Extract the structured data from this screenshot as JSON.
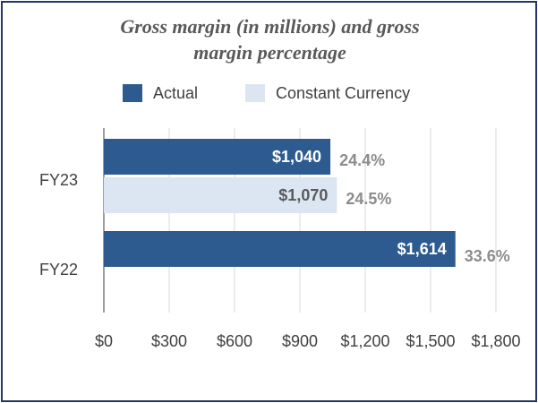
{
  "chart_data": {
    "type": "bar",
    "orientation": "horizontal",
    "title_lines": [
      "Gross margin (in millions) and gross",
      "margin percentage"
    ],
    "xlabel": "",
    "ylabel": "",
    "xlim": [
      0,
      1800
    ],
    "x_ticks": [
      0,
      300,
      600,
      900,
      1200,
      1500,
      1800
    ],
    "x_tick_labels": [
      "$0",
      "$300",
      "$600",
      "$900",
      "$1,200",
      "$1,500",
      "$1,800"
    ],
    "grid": "vertical",
    "legend_position": "top",
    "categories": [
      "FY23",
      "FY22"
    ],
    "series": [
      {
        "name": "Actual",
        "color": "#2e5b8f",
        "label_color": "#ffffff",
        "values": [
          1040,
          1614
        ],
        "value_labels": [
          "$1,040",
          "$1,614"
        ],
        "pct_labels": [
          "24.4%",
          "33.6%"
        ]
      },
      {
        "name": "Constant Currency",
        "color": "#dce6f2",
        "label_color": "#595959",
        "values": [
          1070,
          null
        ],
        "value_labels": [
          "$1,070",
          null
        ],
        "pct_labels": [
          "24.5%",
          null
        ]
      }
    ]
  }
}
